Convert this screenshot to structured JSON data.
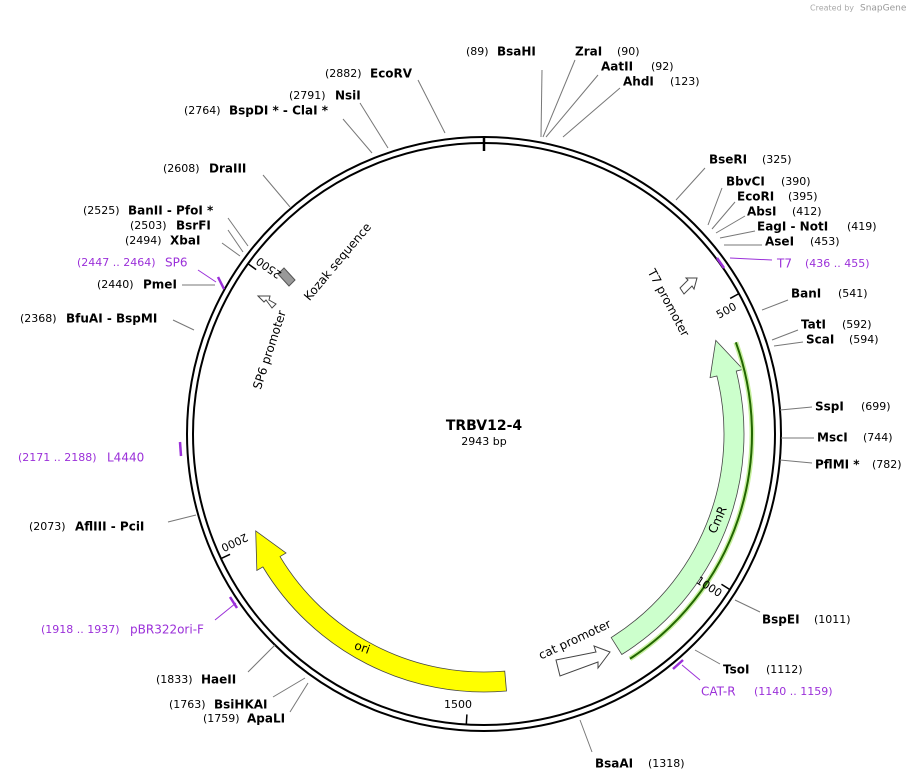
{
  "header": {
    "credit": "Created by",
    "brand": "SnapGene"
  },
  "map": {
    "name": "TRBV12-4",
    "length": "2943 bp",
    "ticks": [
      "500",
      "1000",
      "1500",
      "2000",
      "2500"
    ]
  },
  "sites": [
    {
      "name": "BsaHI",
      "position": "(89)"
    },
    {
      "name": "ZraI",
      "position": "(90)"
    },
    {
      "name": "AatII",
      "position": "(92)"
    },
    {
      "name": "AhdI",
      "position": "(123)"
    },
    {
      "name": "BseRI",
      "position": "(325)"
    },
    {
      "name": "BbvCI",
      "position": "(390)"
    },
    {
      "name": "EcoRI",
      "position": "(395)"
    },
    {
      "name": "AbsI",
      "position": "(412)"
    },
    {
      "name": "EagI  -  NotI",
      "position": "(419)"
    },
    {
      "name": "AseI",
      "position": "(453)"
    },
    {
      "name": "BanI",
      "position": "(541)"
    },
    {
      "name": "TatI",
      "position": "(592)"
    },
    {
      "name": "ScaI",
      "position": "(594)"
    },
    {
      "name": "SspI",
      "position": "(699)"
    },
    {
      "name": "MscI",
      "position": "(744)"
    },
    {
      "name": "PflMI *",
      "position": "(782)"
    },
    {
      "name": "BspEI",
      "position": "(1011)"
    },
    {
      "name": "TsoI",
      "position": "(1112)"
    },
    {
      "name": "BsaAI",
      "position": "(1318)"
    },
    {
      "name": "EcoRV",
      "position": "(2882)"
    },
    {
      "name": "NsiI",
      "position": "(2791)"
    },
    {
      "name": "BspDI *  -  ClaI *",
      "position": "(2764)"
    },
    {
      "name": "DraIII",
      "position": "(2608)"
    },
    {
      "name": "BanII  -  PfoI *",
      "position": "(2525)"
    },
    {
      "name": "BsrFI",
      "position": "(2503)"
    },
    {
      "name": "XbaI",
      "position": "(2494)"
    },
    {
      "name": "PmeI",
      "position": "(2440)"
    },
    {
      "name": "BfuAI  -  BspMI",
      "position": "(2368)"
    },
    {
      "name": "AflIII  -  PciI",
      "position": "(2073)"
    },
    {
      "name": "HaeII",
      "position": "(1833)"
    },
    {
      "name": "BsiHKAI",
      "position": "(1763)"
    },
    {
      "name": "ApaLI",
      "position": "(1759)"
    }
  ],
  "primers": [
    {
      "name": "SP6",
      "range": "(2447 .. 2464)"
    },
    {
      "name": "T7",
      "range": "(436 .. 455)"
    },
    {
      "name": "L4440",
      "range": "(2171 .. 2188)"
    },
    {
      "name": "pBR322ori-F",
      "range": "(1918 .. 1937)"
    },
    {
      "name": "CAT-R",
      "range": "(1140 .. 1159)"
    }
  ],
  "features": [
    "Kozak sequence",
    "SP6 promoter",
    "T7 promoter",
    "CmR",
    "cat promoter",
    "ori"
  ]
}
